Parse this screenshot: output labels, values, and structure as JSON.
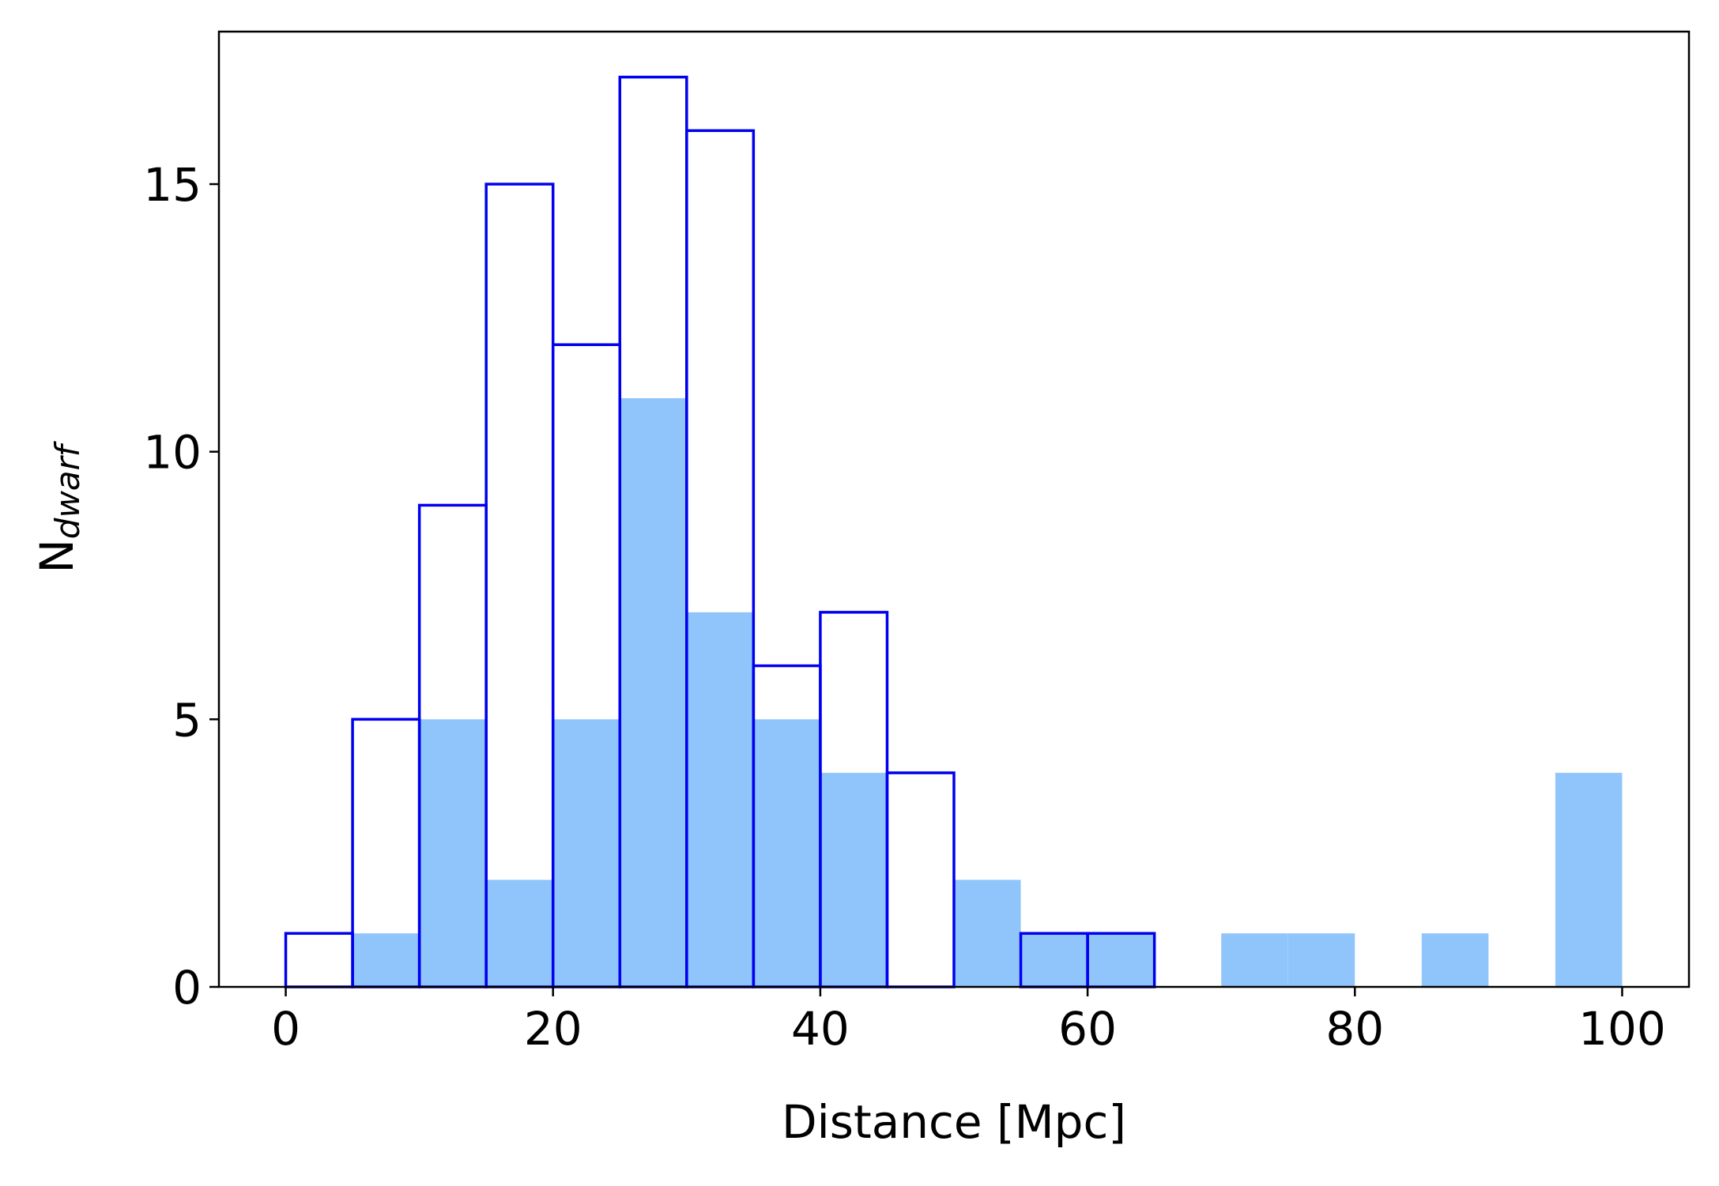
{
  "chart_data": {
    "type": "bar",
    "title": "",
    "xlabel": "Distance [Mpc]",
    "ylabel_main": "N",
    "ylabel_sub": "dwarf",
    "xlim": [
      -5,
      105
    ],
    "ylim": [
      0,
      17.85
    ],
    "grid": false,
    "xticks": [
      0,
      20,
      40,
      60,
      80,
      100
    ],
    "yticks": [
      0,
      5,
      10,
      15
    ],
    "bin_edges": [
      0,
      5,
      10,
      15,
      20,
      25,
      30,
      35,
      40,
      45,
      50,
      55,
      60,
      65,
      70,
      75,
      80,
      85,
      90,
      95,
      100
    ],
    "series": [
      {
        "style": "filled",
        "color": "#90c5fb",
        "values": [
          0,
          1,
          5,
          2,
          5,
          11,
          7,
          5,
          4,
          0,
          2,
          1,
          1,
          0,
          1,
          1,
          0,
          1,
          0,
          4
        ]
      },
      {
        "style": "step-outline",
        "color": "#0000ee",
        "values": [
          1,
          5,
          9,
          15,
          12,
          17,
          16,
          6,
          7,
          4,
          0,
          1,
          1,
          0,
          0,
          0,
          0,
          0,
          0,
          0
        ]
      }
    ]
  }
}
